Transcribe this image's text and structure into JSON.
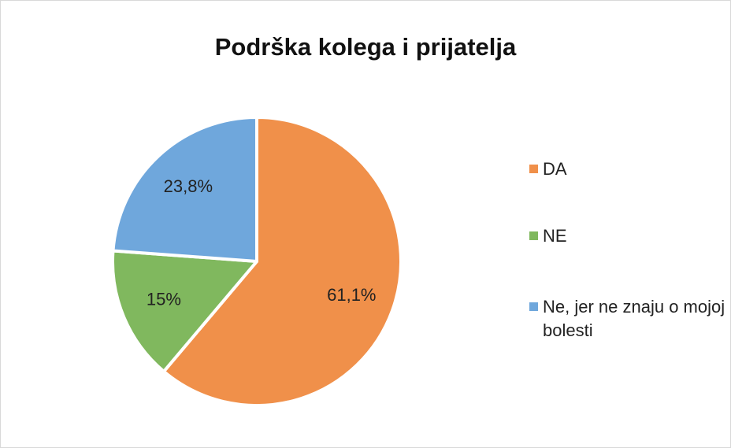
{
  "chart_data": {
    "type": "pie",
    "title": "Podrška kolega i prijatelja",
    "categories": [
      "DA",
      "NE",
      "Ne, jer ne znaju o mojoj bolesti"
    ],
    "values": [
      61.1,
      15,
      23.8
    ],
    "value_labels": [
      "61,1%",
      "15%",
      "23,8%"
    ],
    "colors": [
      "#f0904a",
      "#80b85e",
      "#6fa7dc"
    ],
    "legend": "right"
  }
}
